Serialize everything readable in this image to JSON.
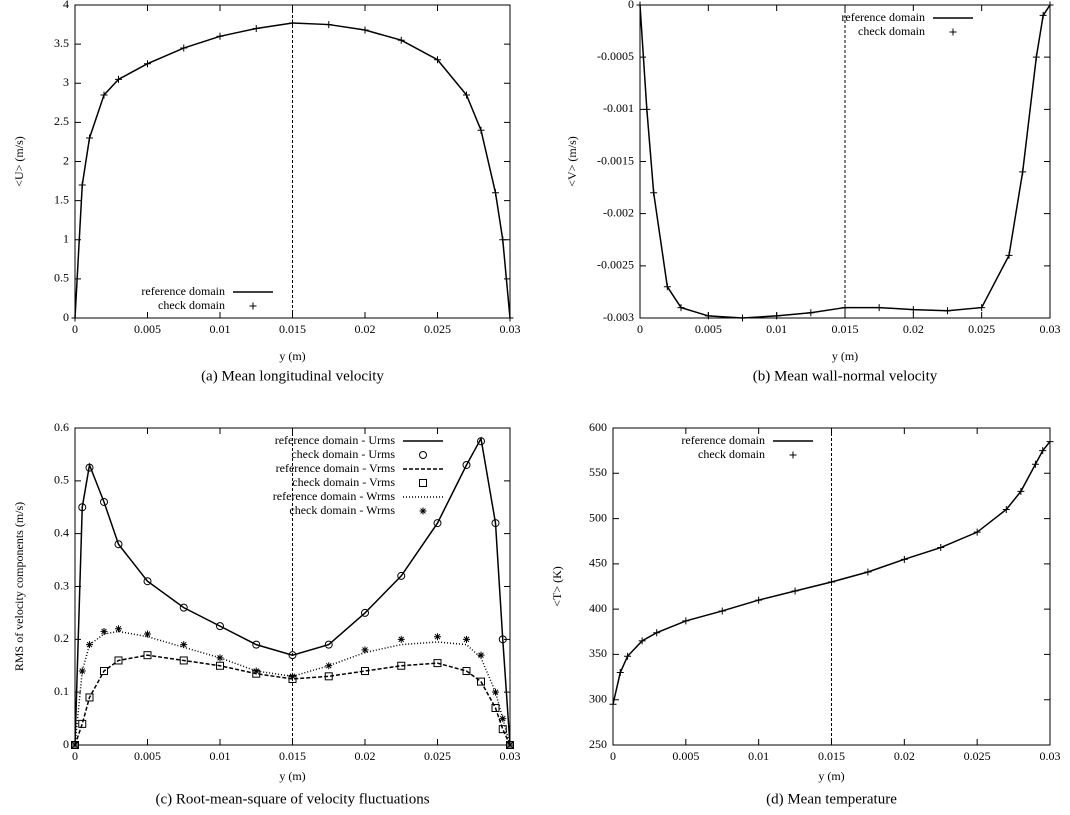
{
  "chart_data": [
    {
      "type": "line",
      "caption": "(a)  Mean longitudinal velocity",
      "xlabel": "y (m)",
      "ylabel": "<U> (m/s)",
      "x": [
        0,
        0.0005,
        0.001,
        0.002,
        0.003,
        0.005,
        0.0075,
        0.01,
        0.0125,
        0.015,
        0.0175,
        0.02,
        0.0225,
        0.025,
        0.027,
        0.028,
        0.029,
        0.0295,
        0.03
      ],
      "series": [
        {
          "name": "reference domain",
          "color": "#000000",
          "style": "line",
          "values": [
            0,
            1.7,
            2.3,
            2.85,
            3.05,
            3.25,
            3.45,
            3.6,
            3.7,
            3.77,
            3.75,
            3.68,
            3.55,
            3.3,
            2.85,
            2.4,
            1.6,
            1.0,
            0
          ]
        },
        {
          "name": "check domain",
          "color": "#000000",
          "style": "marker",
          "marker": "plus",
          "values": [
            0,
            1.7,
            2.3,
            2.85,
            3.05,
            3.25,
            3.45,
            3.6,
            3.7,
            3.77,
            3.75,
            3.68,
            3.55,
            3.3,
            2.85,
            2.4,
            1.6,
            1.0,
            0
          ]
        }
      ],
      "xlim": [
        0,
        0.03
      ],
      "xticks": [
        0,
        0.005,
        0.01,
        0.015,
        0.02,
        0.025,
        0.03
      ],
      "ylim": [
        0,
        4
      ],
      "yticks": [
        0,
        0.5,
        1,
        1.5,
        2,
        2.5,
        3,
        3.5,
        4
      ],
      "vline": 0.015,
      "legend": "bottom left"
    },
    {
      "type": "line",
      "caption": "(b)  Mean wall-normal velocity",
      "xlabel": "y (m)",
      "ylabel": "<V> (m/s)",
      "x": [
        0,
        0.0005,
        0.001,
        0.002,
        0.003,
        0.005,
        0.0075,
        0.01,
        0.0125,
        0.015,
        0.0175,
        0.02,
        0.0225,
        0.025,
        0.027,
        0.028,
        0.029,
        0.0295,
        0.03
      ],
      "series": [
        {
          "name": "reference domain",
          "color": "#000000",
          "style": "line",
          "values": [
            0,
            -0.001,
            -0.0018,
            -0.0027,
            -0.0029,
            -0.00298,
            -0.003,
            -0.00298,
            -0.00295,
            -0.0029,
            -0.0029,
            -0.00292,
            -0.00293,
            -0.0029,
            -0.0024,
            -0.0016,
            -0.0005,
            -0.0001,
            0
          ]
        },
        {
          "name": "check domain",
          "color": "#000000",
          "style": "marker",
          "marker": "plus",
          "values": [
            0,
            -0.001,
            -0.0018,
            -0.0027,
            -0.0029,
            -0.00298,
            -0.003,
            -0.00298,
            -0.00295,
            -0.0029,
            -0.0029,
            -0.00292,
            -0.00293,
            -0.0029,
            -0.0024,
            -0.0016,
            -0.0005,
            -0.0001,
            0
          ]
        }
      ],
      "xlim": [
        0,
        0.03
      ],
      "xticks": [
        0,
        0.005,
        0.01,
        0.015,
        0.02,
        0.025,
        0.03
      ],
      "ylim": [
        -0.003,
        0
      ],
      "yticks": [
        -0.003,
        -0.0025,
        -0.002,
        -0.0015,
        -0.001,
        -0.0005,
        0
      ],
      "vline": 0.015,
      "legend": "top center"
    },
    {
      "type": "line",
      "caption": "(c)  Root-mean-square of velocity fluctuations",
      "xlabel": "y (m)",
      "ylabel": "RMS of velocity components (m/s)",
      "x": [
        0,
        0.0005,
        0.001,
        0.002,
        0.003,
        0.005,
        0.0075,
        0.01,
        0.0125,
        0.015,
        0.0175,
        0.02,
        0.0225,
        0.025,
        0.027,
        0.028,
        0.029,
        0.0295,
        0.03
      ],
      "series": [
        {
          "name": "reference domain - Urms",
          "color": "#000000",
          "style": "line",
          "values": [
            0,
            0.45,
            0.53,
            0.46,
            0.38,
            0.31,
            0.26,
            0.225,
            0.19,
            0.17,
            0.19,
            0.25,
            0.32,
            0.42,
            0.53,
            0.58,
            0.42,
            0.2,
            0
          ]
        },
        {
          "name": "check domain - Urms",
          "color": "#000000",
          "style": "marker",
          "marker": "circle",
          "values": [
            0,
            0.45,
            0.525,
            0.46,
            0.38,
            0.31,
            0.26,
            0.225,
            0.19,
            0.17,
            0.19,
            0.25,
            0.32,
            0.42,
            0.53,
            0.575,
            0.42,
            0.2,
            0
          ]
        },
        {
          "name": "reference domain - Vrms",
          "color": "#000000",
          "style": "line",
          "dash": "4,2",
          "values": [
            0,
            0.04,
            0.09,
            0.14,
            0.16,
            0.17,
            0.16,
            0.15,
            0.135,
            0.125,
            0.13,
            0.14,
            0.15,
            0.155,
            0.14,
            0.12,
            0.07,
            0.03,
            0
          ]
        },
        {
          "name": "check domain - Vrms",
          "color": "#000000",
          "style": "marker",
          "marker": "square",
          "values": [
            0,
            0.04,
            0.09,
            0.14,
            0.16,
            0.17,
            0.16,
            0.15,
            0.135,
            0.125,
            0.13,
            0.14,
            0.15,
            0.155,
            0.14,
            0.12,
            0.07,
            0.03,
            0
          ]
        },
        {
          "name": "reference domain - Wrms",
          "color": "#000000",
          "style": "line",
          "dash": "1,2",
          "values": [
            0,
            0.14,
            0.19,
            0.21,
            0.215,
            0.205,
            0.185,
            0.165,
            0.14,
            0.13,
            0.15,
            0.175,
            0.19,
            0.195,
            0.19,
            0.165,
            0.1,
            0.05,
            0
          ]
        },
        {
          "name": "check domain - Wrms",
          "color": "#000000",
          "style": "marker",
          "marker": "star",
          "values": [
            0,
            0.14,
            0.19,
            0.215,
            0.22,
            0.21,
            0.19,
            0.165,
            0.14,
            0.13,
            0.15,
            0.18,
            0.2,
            0.205,
            0.2,
            0.17,
            0.1,
            0.05,
            0
          ]
        }
      ],
      "xlim": [
        0,
        0.03
      ],
      "xticks": [
        0,
        0.005,
        0.01,
        0.015,
        0.02,
        0.025,
        0.03
      ],
      "ylim": [
        0,
        0.6
      ],
      "yticks": [
        0,
        0.1,
        0.2,
        0.3,
        0.4,
        0.5,
        0.6
      ],
      "vline": 0.015,
      "legend": "top right"
    },
    {
      "type": "line",
      "caption": "(d)  Mean temperature",
      "xlabel": "y (m)",
      "ylabel": "<T> (K)",
      "x": [
        0,
        0.0005,
        0.001,
        0.002,
        0.003,
        0.005,
        0.0075,
        0.01,
        0.0125,
        0.015,
        0.0175,
        0.02,
        0.0225,
        0.025,
        0.027,
        0.028,
        0.029,
        0.0295,
        0.03
      ],
      "series": [
        {
          "name": "reference domain",
          "color": "#000000",
          "style": "line",
          "values": [
            295,
            330,
            348,
            365,
            374,
            387,
            398,
            410,
            420,
            430,
            441,
            455,
            468,
            485,
            510,
            530,
            560,
            575,
            585
          ]
        },
        {
          "name": "check domain",
          "color": "#000000",
          "style": "marker",
          "marker": "plus",
          "values": [
            295,
            330,
            348,
            365,
            374,
            387,
            398,
            410,
            420,
            430,
            441,
            455,
            468,
            485,
            510,
            530,
            560,
            575,
            585
          ]
        }
      ],
      "xlim": [
        0,
        0.03
      ],
      "xticks": [
        0,
        0.005,
        0.01,
        0.015,
        0.02,
        0.025,
        0.03
      ],
      "ylim": [
        250,
        600
      ],
      "yticks": [
        250,
        300,
        350,
        400,
        450,
        500,
        550,
        600
      ],
      "vline": 0.015,
      "legend": "top left"
    }
  ]
}
